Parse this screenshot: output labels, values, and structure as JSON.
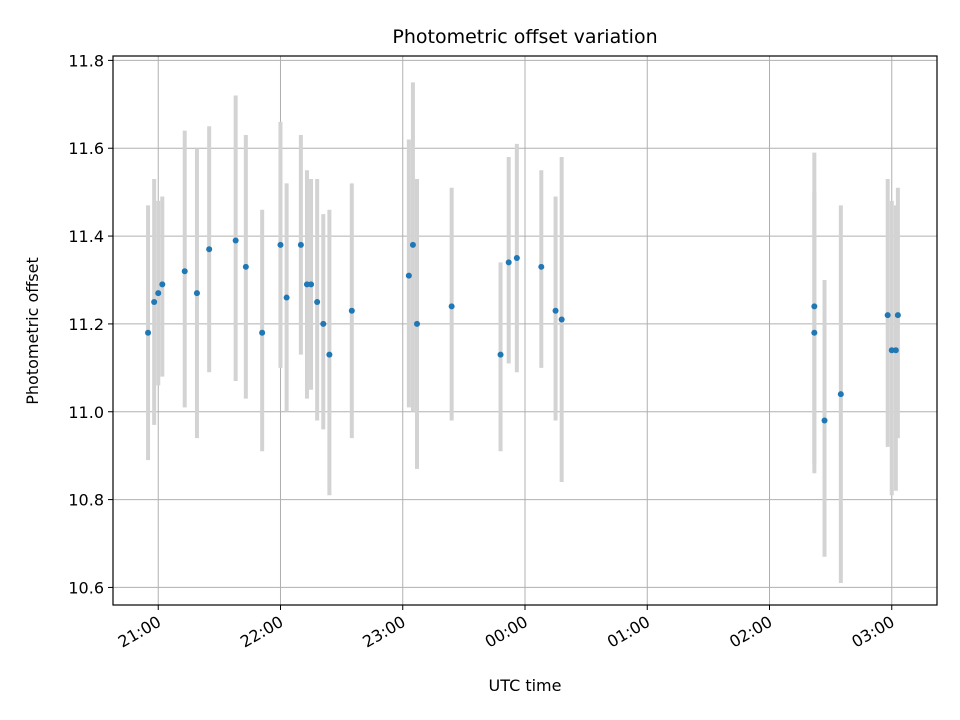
{
  "chart_data": {
    "type": "scatter",
    "title": "Photometric offset variation",
    "xlabel": "UTC time",
    "ylabel": "Photometric offset",
    "x_ticks": [
      "21:00",
      "22:00",
      "23:00",
      "00:00",
      "01:00",
      "02:00",
      "03:00"
    ],
    "y_ticks": [
      "10.6",
      "10.8",
      "11.0",
      "11.2",
      "11.4",
      "11.6",
      "11.8"
    ],
    "xlim_hours": [
      20.63,
      27.37
    ],
    "ylim": [
      10.56,
      11.81
    ],
    "grid": true,
    "marker_color": "#1f77b4",
    "errorbar_color": "#d3d3d3",
    "points": [
      {
        "t": "20:55",
        "y": 11.18,
        "lo": 10.89,
        "hi": 11.47
      },
      {
        "t": "20:58",
        "y": 11.25,
        "lo": 10.97,
        "hi": 11.53
      },
      {
        "t": "21:00",
        "y": 11.27,
        "lo": 11.06,
        "hi": 11.48
      },
      {
        "t": "21:02",
        "y": 11.29,
        "lo": 11.08,
        "hi": 11.49
      },
      {
        "t": "21:13",
        "y": 11.32,
        "lo": 11.01,
        "hi": 11.64
      },
      {
        "t": "21:19",
        "y": 11.27,
        "lo": 10.94,
        "hi": 11.6
      },
      {
        "t": "21:25",
        "y": 11.37,
        "lo": 11.09,
        "hi": 11.65
      },
      {
        "t": "21:38",
        "y": 11.39,
        "lo": 11.07,
        "hi": 11.72
      },
      {
        "t": "21:43",
        "y": 11.33,
        "lo": 11.03,
        "hi": 11.63
      },
      {
        "t": "21:51",
        "y": 11.18,
        "lo": 10.91,
        "hi": 11.46
      },
      {
        "t": "22:00",
        "y": 11.38,
        "lo": 11.1,
        "hi": 11.66
      },
      {
        "t": "22:03",
        "y": 11.26,
        "lo": 11.0,
        "hi": 11.52
      },
      {
        "t": "22:10",
        "y": 11.38,
        "lo": 11.13,
        "hi": 11.63
      },
      {
        "t": "22:13",
        "y": 11.29,
        "lo": 11.03,
        "hi": 11.55
      },
      {
        "t": "22:15",
        "y": 11.29,
        "lo": 11.05,
        "hi": 11.53
      },
      {
        "t": "22:18",
        "y": 11.25,
        "lo": 10.98,
        "hi": 11.53
      },
      {
        "t": "22:21",
        "y": 11.2,
        "lo": 10.96,
        "hi": 11.45
      },
      {
        "t": "22:24",
        "y": 11.13,
        "lo": 10.81,
        "hi": 11.46
      },
      {
        "t": "22:35",
        "y": 11.23,
        "lo": 10.94,
        "hi": 11.52
      },
      {
        "t": "23:03",
        "y": 11.31,
        "lo": 11.01,
        "hi": 11.62
      },
      {
        "t": "23:05",
        "y": 11.38,
        "lo": 11.0,
        "hi": 11.75
      },
      {
        "t": "23:07",
        "y": 11.2,
        "lo": 10.87,
        "hi": 11.53
      },
      {
        "t": "23:24",
        "y": 11.24,
        "lo": 10.98,
        "hi": 11.51
      },
      {
        "t": "23:48",
        "y": 11.13,
        "lo": 10.91,
        "hi": 11.34
      },
      {
        "t": "23:52",
        "y": 11.34,
        "lo": 11.11,
        "hi": 11.58
      },
      {
        "t": "23:56",
        "y": 11.35,
        "lo": 11.09,
        "hi": 11.61
      },
      {
        "t": "00:08",
        "y": 11.33,
        "lo": 11.1,
        "hi": 11.55
      },
      {
        "t": "00:15",
        "y": 11.23,
        "lo": 10.98,
        "hi": 11.49
      },
      {
        "t": "00:18",
        "y": 11.21,
        "lo": 10.84,
        "hi": 11.58
      },
      {
        "t": "02:22",
        "y": 11.24,
        "lo": 10.88,
        "hi": 11.59
      },
      {
        "t": "02:22",
        "y": 11.18,
        "lo": 10.86,
        "hi": 11.5
      },
      {
        "t": "02:27",
        "y": 10.98,
        "lo": 10.67,
        "hi": 11.3
      },
      {
        "t": "02:35",
        "y": 11.04,
        "lo": 10.61,
        "hi": 11.47
      },
      {
        "t": "02:58",
        "y": 11.22,
        "lo": 10.92,
        "hi": 11.53
      },
      {
        "t": "03:00",
        "y": 11.14,
        "lo": 10.81,
        "hi": 11.48
      },
      {
        "t": "03:02",
        "y": 11.14,
        "lo": 10.82,
        "hi": 11.47
      },
      {
        "t": "03:03",
        "y": 11.22,
        "lo": 10.94,
        "hi": 11.51
      }
    ]
  }
}
